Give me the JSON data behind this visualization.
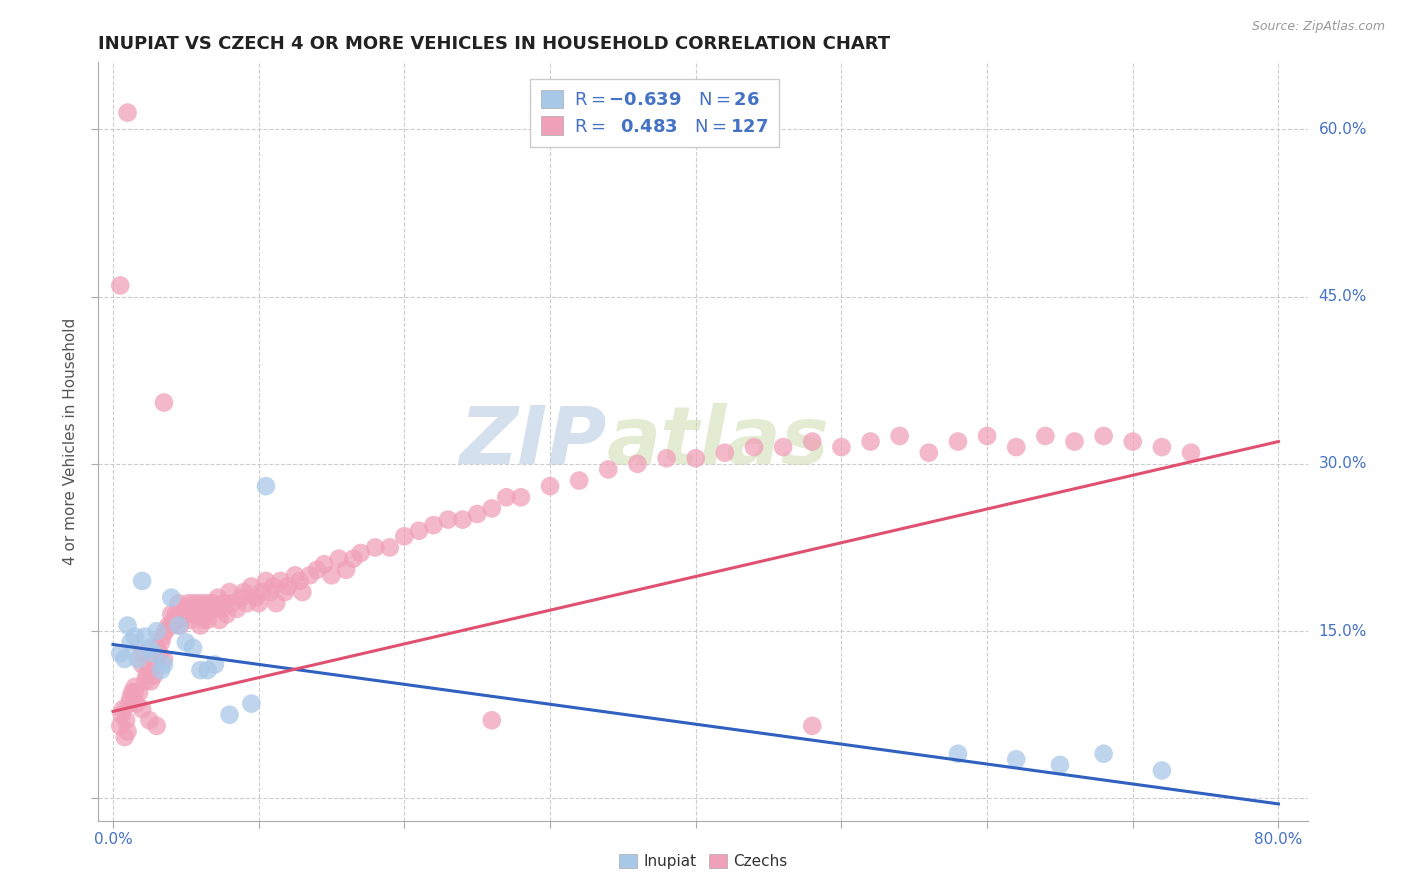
{
  "title": "INUPIAT VS CZECH 4 OR MORE VEHICLES IN HOUSEHOLD CORRELATION CHART",
  "source_text": "Source: ZipAtlas.com",
  "ylabel": "4 or more Vehicles in Household",
  "xlim": [
    -0.01,
    0.82
  ],
  "ylim": [
    -0.02,
    0.66
  ],
  "xtick_vals": [
    0.0,
    0.1,
    0.2,
    0.3,
    0.4,
    0.5,
    0.6,
    0.7,
    0.8
  ],
  "xticklabels": [
    "0.0%",
    "",
    "",
    "",
    "",
    "",
    "",
    "",
    "80.0%"
  ],
  "ytick_vals": [
    0.0,
    0.15,
    0.3,
    0.45,
    0.6
  ],
  "yticklabels": [
    "",
    "15.0%",
    "30.0%",
    "45.0%",
    "60.0%"
  ],
  "watermark_zip": "ZIP",
  "watermark_atlas": "atlas",
  "inupiat_color": "#a8c8e8",
  "czech_color": "#f0a0b8",
  "inupiat_line_color": "#3060c0",
  "czech_line_color": "#e05070",
  "legend_text_color": "#4472c4",
  "tick_color": "#4472c4",
  "title_color": "#222222",
  "ylabel_color": "#555555",
  "grid_color": "#c8c8c8",
  "background_color": "#ffffff",
  "inupiat_line_y0": 0.138,
  "inupiat_line_y1": -0.005,
  "czech_line_y0": 0.078,
  "czech_line_y1": 0.32,
  "inupiat_x": [
    0.005,
    0.008,
    0.01,
    0.012,
    0.015,
    0.017,
    0.02,
    0.022,
    0.025,
    0.028,
    0.03,
    0.033,
    0.035,
    0.04,
    0.045,
    0.05,
    0.055,
    0.06,
    0.065,
    0.07,
    0.08,
    0.095,
    0.105,
    0.58,
    0.62,
    0.65,
    0.68,
    0.72
  ],
  "inupiat_y": [
    0.13,
    0.125,
    0.155,
    0.14,
    0.145,
    0.125,
    0.195,
    0.145,
    0.135,
    0.13,
    0.15,
    0.115,
    0.12,
    0.18,
    0.155,
    0.14,
    0.135,
    0.115,
    0.115,
    0.12,
    0.075,
    0.085,
    0.28,
    0.04,
    0.035,
    0.03,
    0.04,
    0.025
  ],
  "czech_x": [
    0.005,
    0.006,
    0.007,
    0.008,
    0.009,
    0.01,
    0.011,
    0.012,
    0.013,
    0.015,
    0.016,
    0.018,
    0.02,
    0.02,
    0.022,
    0.023,
    0.025,
    0.026,
    0.028,
    0.03,
    0.03,
    0.032,
    0.033,
    0.034,
    0.035,
    0.036,
    0.038,
    0.04,
    0.04,
    0.042,
    0.043,
    0.044,
    0.045,
    0.046,
    0.048,
    0.05,
    0.05,
    0.052,
    0.053,
    0.054,
    0.055,
    0.056,
    0.058,
    0.06,
    0.06,
    0.062,
    0.063,
    0.064,
    0.065,
    0.068,
    0.07,
    0.072,
    0.073,
    0.075,
    0.076,
    0.078,
    0.08,
    0.082,
    0.085,
    0.088,
    0.09,
    0.092,
    0.095,
    0.098,
    0.1,
    0.102,
    0.105,
    0.108,
    0.11,
    0.112,
    0.115,
    0.118,
    0.12,
    0.125,
    0.128,
    0.13,
    0.135,
    0.14,
    0.145,
    0.15,
    0.155,
    0.16,
    0.165,
    0.17,
    0.18,
    0.19,
    0.2,
    0.21,
    0.22,
    0.23,
    0.24,
    0.25,
    0.26,
    0.27,
    0.28,
    0.3,
    0.32,
    0.34,
    0.36,
    0.38,
    0.4,
    0.42,
    0.44,
    0.46,
    0.48,
    0.5,
    0.52,
    0.54,
    0.56,
    0.58,
    0.6,
    0.62,
    0.64,
    0.66,
    0.68,
    0.7,
    0.72,
    0.74,
    0.005,
    0.01,
    0.015,
    0.02,
    0.025,
    0.03,
    0.035,
    0.26,
    0.48
  ],
  "czech_y": [
    0.065,
    0.075,
    0.08,
    0.055,
    0.07,
    0.06,
    0.085,
    0.09,
    0.095,
    0.1,
    0.085,
    0.095,
    0.13,
    0.12,
    0.105,
    0.11,
    0.115,
    0.105,
    0.11,
    0.12,
    0.135,
    0.13,
    0.14,
    0.145,
    0.125,
    0.15,
    0.155,
    0.155,
    0.165,
    0.16,
    0.165,
    0.16,
    0.175,
    0.155,
    0.165,
    0.17,
    0.165,
    0.175,
    0.16,
    0.17,
    0.165,
    0.175,
    0.17,
    0.175,
    0.155,
    0.16,
    0.165,
    0.175,
    0.16,
    0.175,
    0.17,
    0.18,
    0.16,
    0.17,
    0.175,
    0.165,
    0.185,
    0.175,
    0.17,
    0.18,
    0.185,
    0.175,
    0.19,
    0.18,
    0.175,
    0.185,
    0.195,
    0.185,
    0.19,
    0.175,
    0.195,
    0.185,
    0.19,
    0.2,
    0.195,
    0.185,
    0.2,
    0.205,
    0.21,
    0.2,
    0.215,
    0.205,
    0.215,
    0.22,
    0.225,
    0.225,
    0.235,
    0.24,
    0.245,
    0.25,
    0.25,
    0.255,
    0.26,
    0.27,
    0.27,
    0.28,
    0.285,
    0.295,
    0.3,
    0.305,
    0.305,
    0.31,
    0.315,
    0.315,
    0.32,
    0.315,
    0.32,
    0.325,
    0.31,
    0.32,
    0.325,
    0.315,
    0.325,
    0.32,
    0.325,
    0.32,
    0.315,
    0.31,
    0.46,
    0.615,
    0.095,
    0.08,
    0.07,
    0.065,
    0.355,
    0.07,
    0.065
  ]
}
